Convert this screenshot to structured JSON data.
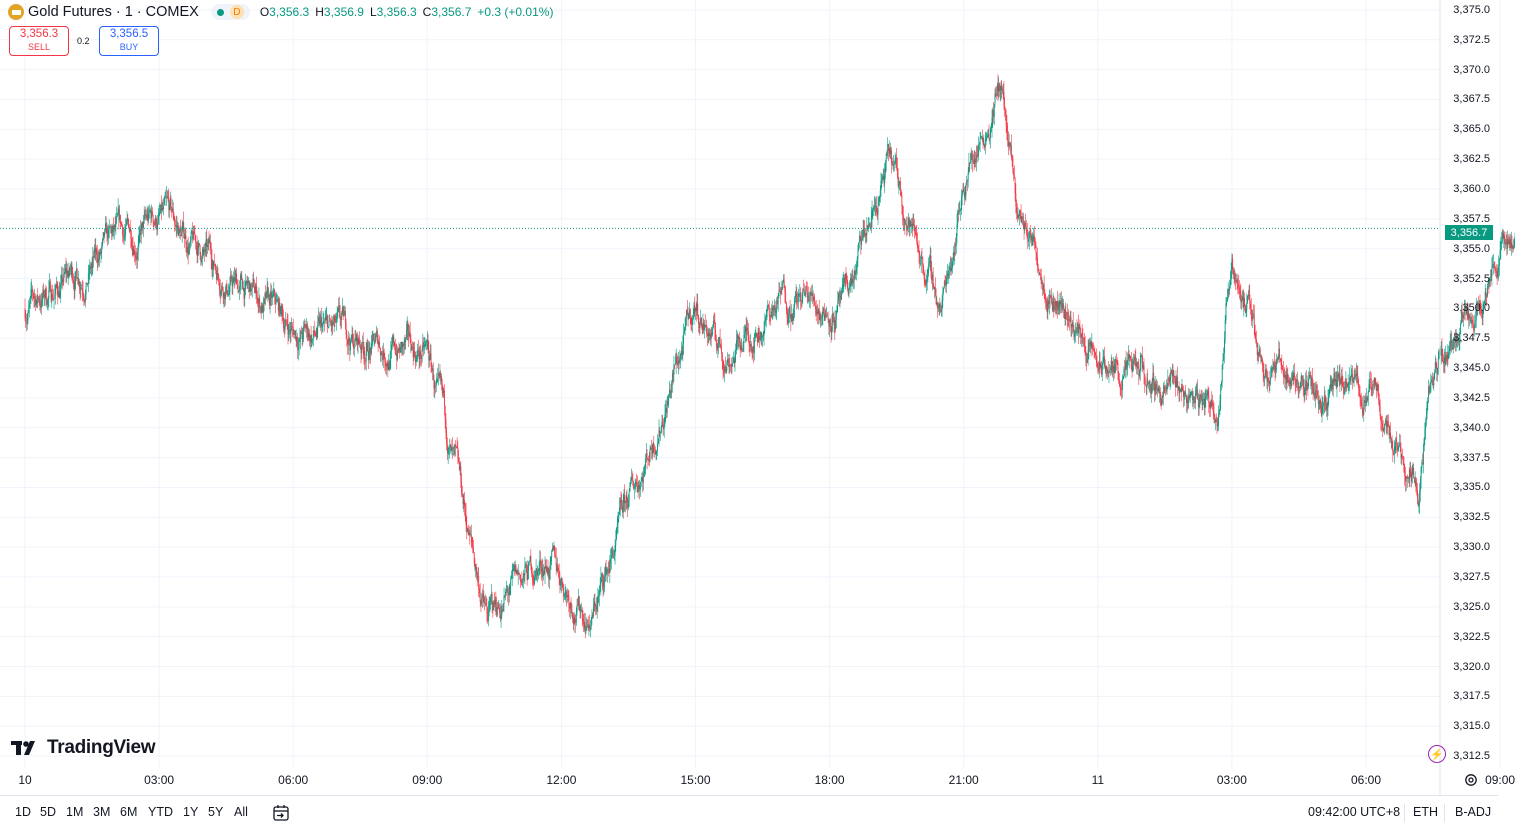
{
  "legend": {
    "symbol_title": "Gold Futures · 1 · COMEX",
    "market_status_icon": "market-open-dot-icon",
    "data_flag": "D",
    "ohlc": {
      "o_label": "O",
      "o": "3,356.3",
      "h_label": "H",
      "h": "3,356.9",
      "l_label": "L",
      "l": "3,356.3",
      "c_label": "C",
      "c": "3,356.7",
      "change": "+0.3 (+0.01%)"
    }
  },
  "trading": {
    "sell_price": "3,356.3",
    "sell_label": "SELL",
    "spread": "0.2",
    "buy_price": "3,356.5",
    "buy_label": "BUY"
  },
  "price_axis": {
    "labels": [
      "3,375.0",
      "3,372.5",
      "3,370.0",
      "3,367.5",
      "3,365.0",
      "3,362.5",
      "3,360.0",
      "3,357.5",
      "3,355.0",
      "3,352.5",
      "3,350.0",
      "3,347.5",
      "3,345.0",
      "3,342.5",
      "3,340.0",
      "3,337.5",
      "3,335.0",
      "3,332.5",
      "3,330.0",
      "3,327.5",
      "3,325.0",
      "3,322.5",
      "3,320.0",
      "3,317.5",
      "3,315.0",
      "3,312.5"
    ],
    "last_price": "3,356.7"
  },
  "time_axis": {
    "labels": [
      "10",
      "03:00",
      "06:00",
      "09:00",
      "12:00",
      "15:00",
      "18:00",
      "21:00",
      "11",
      "03:00",
      "06:00",
      "09:00"
    ]
  },
  "branding": {
    "logo_text": "TradingView"
  },
  "bottom_bar": {
    "ranges": [
      "1D",
      "5D",
      "1M",
      "3M",
      "6M",
      "YTD",
      "1Y",
      "5Y",
      "All"
    ],
    "clock": "09:42:00 UTC+8",
    "session": "ETH",
    "adjustment": "B-ADJ"
  },
  "colors": {
    "up": "#089981",
    "down": "#f23645",
    "grid": "#f0f3fa",
    "accent": "#2962ff"
  },
  "chart_data": {
    "type": "candlestick",
    "title": "Gold Futures · 1 · COMEX",
    "ylim": [
      3311.5,
      3376.0
    ],
    "last": 3356.7,
    "time_ticks": [
      "10",
      "03:00",
      "06:00",
      "09:00",
      "12:00",
      "15:00",
      "18:00",
      "21:00",
      "11",
      "03:00",
      "06:00",
      "09:00"
    ],
    "path_time": [
      "10 00:00",
      "03:00",
      "06:00",
      "09:00",
      "10:20",
      "11:40",
      "12:40",
      "15:00",
      "15:40",
      "17:00",
      "18:20",
      "19:20",
      "20:30",
      "21:00",
      "21:50",
      "22:10",
      "11 00:00",
      "02:40",
      "03:00",
      "03:40",
      "05:00",
      "06:00",
      "07:10",
      "07:30",
      "08:40",
      "09:30"
    ],
    "path_price": [
      3350,
      3357.5,
      3348,
      3346,
      3324,
      3329,
      3324,
      3350,
      3346,
      3351,
      3350,
      3362,
      3350,
      3361,
      3369,
      3358,
      3345,
      3342,
      3355,
      3346,
      3343,
      3343,
      3336,
      3344,
      3353,
      3357
    ],
    "grid": true
  }
}
